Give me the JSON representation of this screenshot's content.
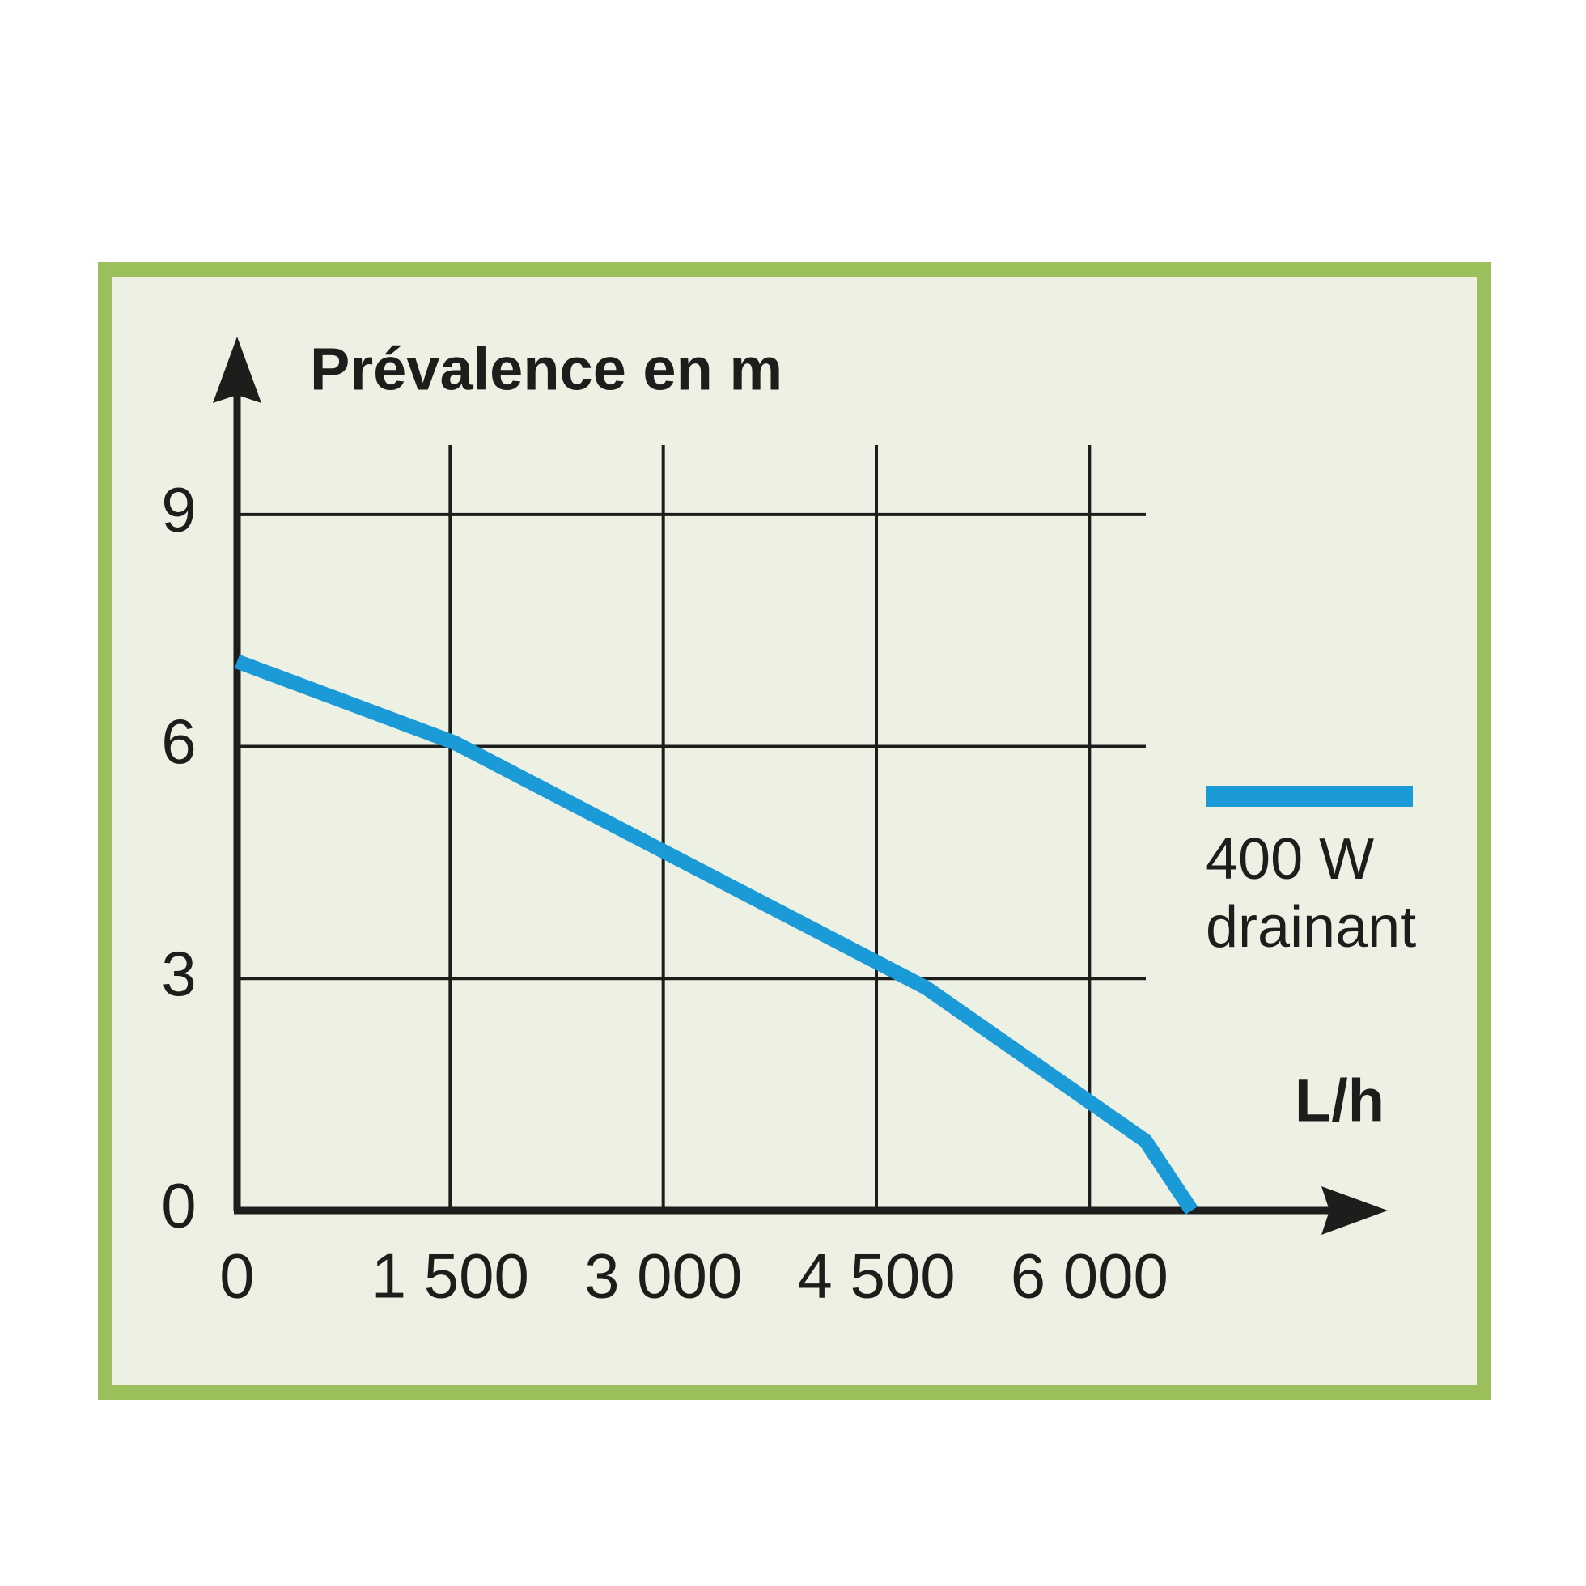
{
  "chart_data": {
    "type": "line",
    "y_label": "Prévalence en m",
    "x_label": "L/h",
    "x": [
      0,
      1530,
      4850,
      6395,
      6720
    ],
    "series": [
      {
        "name": "400 W drainant",
        "color": "#1a9ad6",
        "values": [
          7.1,
          6.05,
          2.88,
          0.9,
          0
        ]
      }
    ],
    "xlim": [
      0,
      8100
    ],
    "ylim": [
      0,
      11.3
    ],
    "xticks": [
      0,
      {
        "value": 1500,
        "label": "1 500"
      },
      {
        "value": 3000,
        "label": "3 000"
      },
      {
        "value": 4500,
        "label": "4 500"
      },
      {
        "value": 6000,
        "label": "6 000"
      }
    ],
    "yticks": [
      0,
      3,
      6,
      9
    ],
    "grid": true
  }
}
